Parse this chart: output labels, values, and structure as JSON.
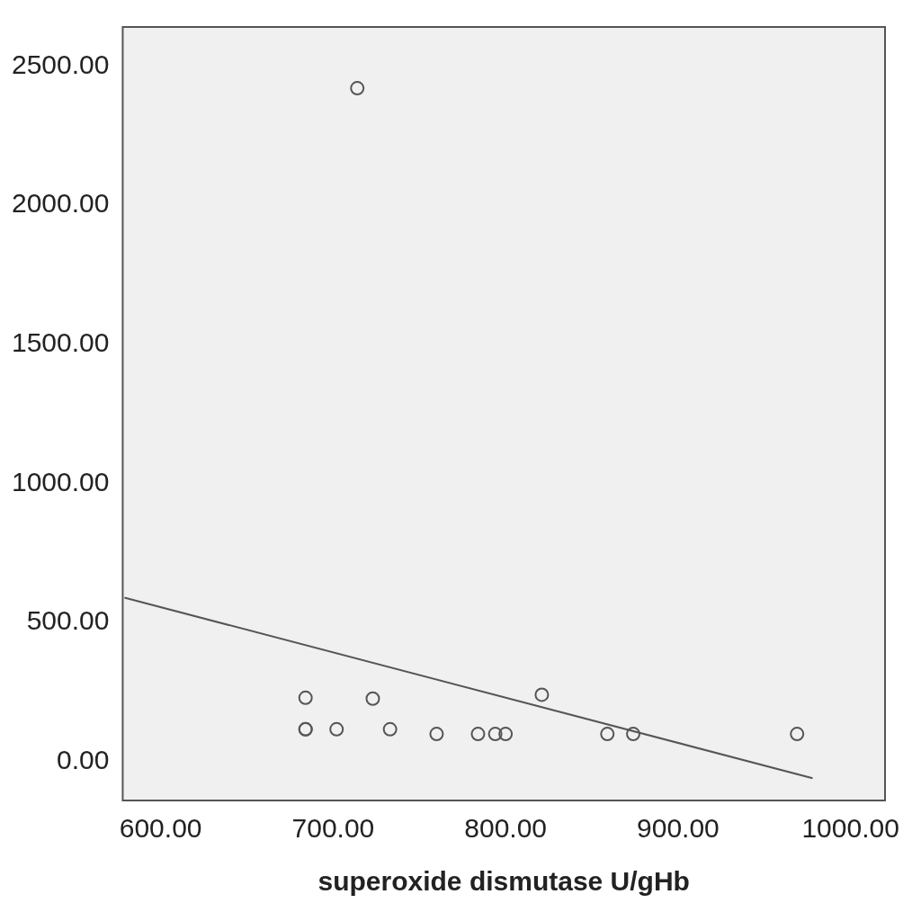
{
  "chart_data": {
    "type": "scatter",
    "xlabel": "superoxide dismutase U/gHb",
    "xlim": [
      578,
      1020
    ],
    "ylim": [
      -140,
      2640
    ],
    "xticks": [
      {
        "value": 600,
        "label": "600.00"
      },
      {
        "value": 700,
        "label": "700.00"
      },
      {
        "value": 800,
        "label": "800.00"
      },
      {
        "value": 900,
        "label": "900.00"
      },
      {
        "value": 1000,
        "label": "1000.00"
      }
    ],
    "yticks": [
      {
        "value": 0,
        "label": "0.00"
      },
      {
        "value": 500,
        "label": "500.00"
      },
      {
        "value": 1000,
        "label": "1000.00"
      },
      {
        "value": 1500,
        "label": "1500.00"
      },
      {
        "value": 2000,
        "label": "2000.00"
      },
      {
        "value": 2500,
        "label": "2500.00"
      }
    ],
    "grid": false,
    "legend": false,
    "marker": "circle",
    "series": [
      {
        "color": "#555555",
        "x": [
          714,
          684,
          684,
          684,
          702,
          723,
          733,
          760,
          784,
          794,
          800,
          821,
          859,
          874,
          969
        ],
        "values": [
          2420,
          229,
          116,
          116,
          116,
          226,
          116,
          99,
          99,
          99,
          99,
          240,
          99,
          99,
          99
        ]
      },
      {
        "type": "line",
        "color": "#555555",
        "marker": "none",
        "x": [
          579,
          978
        ],
        "values": [
          589,
          -60
        ]
      }
    ]
  }
}
